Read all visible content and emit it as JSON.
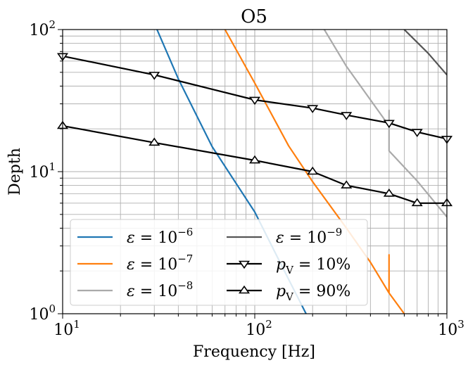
{
  "chart_data": {
    "type": "line",
    "title": "O5",
    "xlabel": "Frequency [Hz]",
    "ylabel": "Depth",
    "xscale": "log",
    "yscale": "log",
    "xlim": [
      10,
      1000
    ],
    "ylim": [
      1,
      100
    ],
    "grid": "major and minor",
    "legend_location": "lower-left",
    "legend_columns": 2,
    "x_ticks": [
      {
        "value": 10,
        "base": "10",
        "exp": "1"
      },
      {
        "value": 100,
        "base": "10",
        "exp": "2"
      },
      {
        "value": 1000,
        "base": "10",
        "exp": "3"
      }
    ],
    "y_ticks": [
      {
        "value": 1,
        "base": "10",
        "exp": "0"
      },
      {
        "value": 10,
        "base": "10",
        "exp": "1"
      },
      {
        "value": 100,
        "base": "10",
        "exp": "2"
      }
    ],
    "series": [
      {
        "name": "ε = 10−6",
        "legend_sym": "ε",
        "legend_eq": " = 10",
        "legend_sup": "−6",
        "color": "#1f77b4",
        "marker": null,
        "kind": "curve",
        "points": [
          [
            31,
            100
          ],
          [
            40,
            45
          ],
          [
            60,
            15
          ],
          [
            100,
            5.2
          ],
          [
            140,
            2.1
          ],
          [
            185,
            1.0
          ]
        ]
      },
      {
        "name": "ε = 10−7",
        "legend_sym": "ε",
        "legend_eq": " = 10",
        "legend_sup": "−7",
        "color": "#ff7f0e",
        "marker": null,
        "kind": "curve",
        "points": [
          [
            70,
            100
          ],
          [
            100,
            42
          ],
          [
            150,
            15.2
          ],
          [
            200,
            8.5
          ],
          [
            300,
            4.0
          ],
          [
            400,
            2.3
          ],
          [
            500,
            1.4
          ],
          [
            500,
            2.6
          ],
          [
            500,
            1.4
          ],
          [
            600,
            1.0
          ]
        ]
      },
      {
        "name": "ε = 10−8",
        "legend_sym": "ε",
        "legend_eq": " = 10",
        "legend_sup": "−8",
        "color": "#aaaaaa",
        "marker": null,
        "kind": "curve",
        "points": [
          [
            230,
            100
          ],
          [
            300,
            55
          ],
          [
            400,
            32
          ],
          [
            500,
            21
          ],
          [
            500,
            27
          ],
          [
            500,
            14
          ],
          [
            700,
            8.6
          ],
          [
            1000,
            4.8
          ]
        ]
      },
      {
        "name": "ε = 10−9",
        "legend_sym": "ε",
        "legend_eq": " = 10",
        "legend_sup": "−9",
        "color": "#555555",
        "marker": null,
        "kind": "curve",
        "points": [
          [
            600,
            100
          ],
          [
            800,
            68
          ],
          [
            1000,
            48
          ]
        ]
      },
      {
        "name": "pV = 10%",
        "legend_sym": "p",
        "legend_sub": "V",
        "legend_eq": " = 10%",
        "color": "#000000",
        "marker": "triangle-down",
        "kind": "markers",
        "points": [
          [
            10,
            65
          ],
          [
            30,
            48
          ],
          [
            100,
            32
          ],
          [
            200,
            28
          ],
          [
            300,
            25
          ],
          [
            500,
            22
          ],
          [
            700,
            19
          ],
          [
            1000,
            17
          ]
        ]
      },
      {
        "name": "pV = 90%",
        "legend_sym": "p",
        "legend_sub": "V",
        "legend_eq": " = 90%",
        "color": "#000000",
        "marker": "triangle-up",
        "kind": "markers",
        "points": [
          [
            10,
            21
          ],
          [
            30,
            16
          ],
          [
            100,
            12
          ],
          [
            200,
            10
          ],
          [
            300,
            8
          ],
          [
            500,
            7
          ],
          [
            700,
            6
          ],
          [
            1000,
            6
          ]
        ]
      }
    ]
  }
}
